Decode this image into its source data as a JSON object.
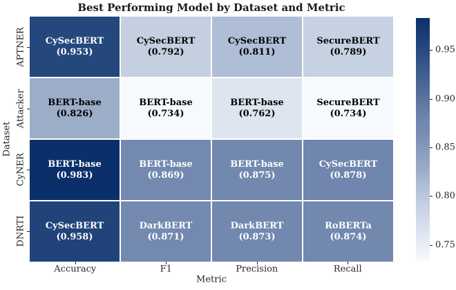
{
  "chart_data": {
    "type": "heatmap",
    "title": "Best Performing Model by Dataset and Metric",
    "xlabel": "Metric",
    "ylabel": "Dataset",
    "columns": [
      "Accuracy",
      "F1",
      "Precision",
      "Recall"
    ],
    "rows": [
      "APTNER",
      "Attacker",
      "CyNER",
      "DNRTI"
    ],
    "cells": [
      [
        {
          "model": "CySecBERT",
          "value": 0.953,
          "color": "#24477c",
          "text_color": "#ffffff"
        },
        {
          "model": "CySecBERT",
          "value": 0.792,
          "color": "#c4cfe0",
          "text_color": "#000000"
        },
        {
          "model": "CySecBERT",
          "value": 0.811,
          "color": "#afbed6",
          "text_color": "#000000"
        },
        {
          "model": "SecureBERT",
          "value": 0.789,
          "color": "#c6d1e2",
          "text_color": "#000000"
        }
      ],
      [
        {
          "model": "BERT-base",
          "value": 0.826,
          "color": "#9cadc8",
          "text_color": "#000000"
        },
        {
          "model": "BERT-base",
          "value": 0.734,
          "color": "#f6f9fe",
          "text_color": "#000000"
        },
        {
          "model": "BERT-base",
          "value": 0.762,
          "color": "#dee5ef",
          "text_color": "#000000"
        },
        {
          "model": "SecureBERT",
          "value": 0.734,
          "color": "#f6f9fe",
          "text_color": "#000000"
        }
      ],
      [
        {
          "model": "BERT-base",
          "value": 0.983,
          "color": "#0a2f6a",
          "text_color": "#ffffff"
        },
        {
          "model": "BERT-base",
          "value": 0.869,
          "color": "#7489b0",
          "text_color": "#ffffff"
        },
        {
          "model": "BERT-base",
          "value": 0.875,
          "color": "#7288af",
          "text_color": "#ffffff"
        },
        {
          "model": "CySecBERT",
          "value": 0.878,
          "color": "#7086ae",
          "text_color": "#ffffff"
        }
      ],
      [
        {
          "model": "CySecBERT",
          "value": 0.958,
          "color": "#21437a",
          "text_color": "#ffffff"
        },
        {
          "model": "DarkBERT",
          "value": 0.871,
          "color": "#7389b0",
          "text_color": "#ffffff"
        },
        {
          "model": "DarkBERT",
          "value": 0.873,
          "color": "#7288af",
          "text_color": "#ffffff"
        },
        {
          "model": "RoBERTa",
          "value": 0.874,
          "color": "#7288af",
          "text_color": "#ffffff"
        }
      ]
    ],
    "colorbar": {
      "min": 0.734,
      "max": 0.983,
      "ticks": [
        {
          "value": 0.95,
          "label": "0.95"
        },
        {
          "value": 0.9,
          "label": "0.90"
        },
        {
          "value": 0.85,
          "label": "0.85"
        },
        {
          "value": 0.8,
          "label": "0.80"
        },
        {
          "value": 0.75,
          "label": "0.75"
        }
      ],
      "gradient": [
        {
          "pos": 0,
          "color": "#0a2f6a"
        },
        {
          "pos": 10,
          "color": "#21437a"
        },
        {
          "pos": 12,
          "color": "#24477c"
        },
        {
          "pos": 42.2,
          "color": "#7086ae"
        },
        {
          "pos": 45.8,
          "color": "#7489b0"
        },
        {
          "pos": 63,
          "color": "#9cadc8"
        },
        {
          "pos": 69.1,
          "color": "#afbed6"
        },
        {
          "pos": 76.7,
          "color": "#c4cfe0"
        },
        {
          "pos": 88.8,
          "color": "#dee5ef"
        },
        {
          "pos": 100,
          "color": "#f6f9fe"
        }
      ]
    }
  }
}
